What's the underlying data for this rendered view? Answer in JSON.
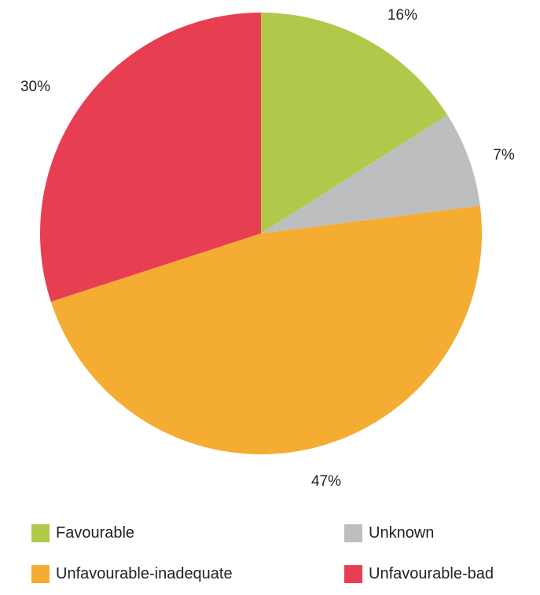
{
  "chart_data": {
    "type": "pie",
    "slices": [
      {
        "label": "Favourable",
        "value": 16,
        "value_label": "16%",
        "color": "#b1c94a"
      },
      {
        "label": "Unknown",
        "value": 7,
        "value_label": "7%",
        "color": "#bdbec0"
      },
      {
        "label": "Unfavourable-inadequate",
        "value": 47,
        "value_label": "47%",
        "color": "#f4ac32"
      },
      {
        "label": "Unfavourable-bad",
        "value": 30,
        "value_label": "30%",
        "color": "#e83e52"
      }
    ],
    "start_angle": "12 o'clock",
    "direction": "clockwise",
    "legend_position": "bottom"
  }
}
